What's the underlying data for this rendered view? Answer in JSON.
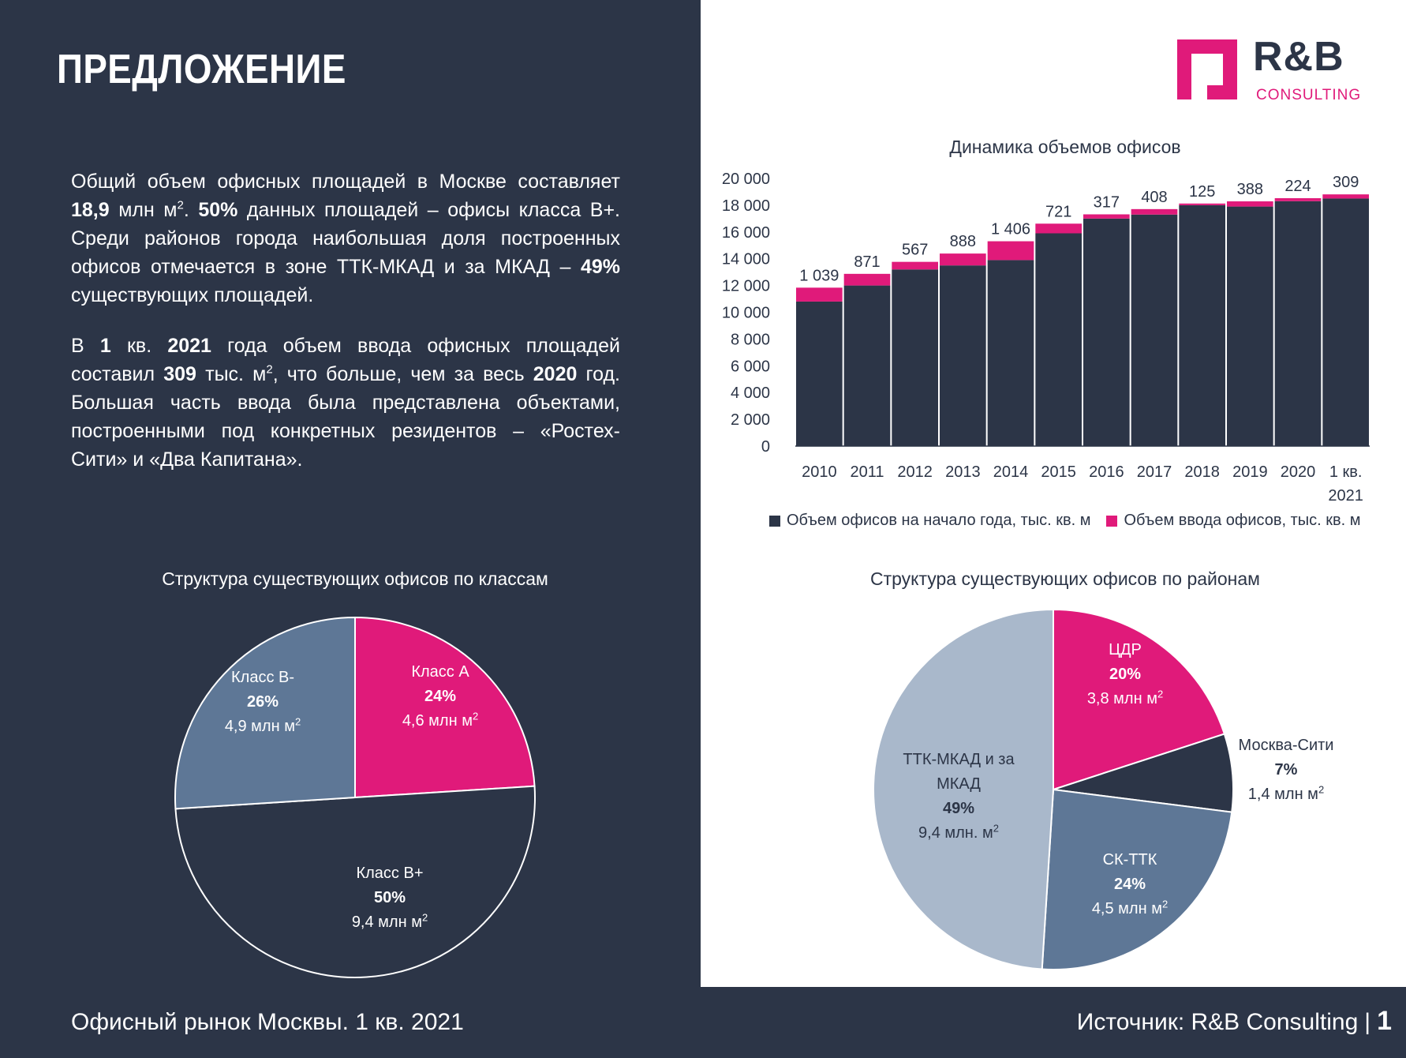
{
  "title": "ПРЕДЛОЖЕНИЕ",
  "paragraph1": {
    "t1": "Общий объем офисных площадей в Москве составляет ",
    "b1": "18,9",
    "t2": " млн м",
    "sup1": "2",
    "t3": ". ",
    "b2": "50%",
    "t4": " данных площадей – офисы класса В+. Среди районов города наибольшая доля построенных офисов отмечается в зоне ТТК-МКАД и за МКАД – ",
    "b3": "49%",
    "t5": " существующих площадей."
  },
  "paragraph2": {
    "t1": "В ",
    "b1": "1",
    "t2": " кв. ",
    "b2": "2021",
    "t3": " года объем ввода офисных площадей составил ",
    "b3": "309",
    "t4": " тыс. м",
    "sup1": "2",
    "t5": ", что больше, чем за весь ",
    "b4": "2020",
    "t6": " год. Большая часть ввода была представлена объектами, построенными под конкретных резидентов – «Ростех-Сити» и «Два Капитана»."
  },
  "logo": {
    "text": "R&B",
    "sub": "CONSULTING",
    "colors": {
      "magenta": "#e01a7a",
      "navy": "#2c3547"
    }
  },
  "footer": {
    "left": "Офисный рынок Москвы. 1 кв. 2021",
    "source_prefix": "Источник: ",
    "source_name": "R&B Consulting",
    "separator": "|",
    "page": "1"
  },
  "chart_data": [
    {
      "type": "bar",
      "stacked": true,
      "title": "Динамика объемов офисов",
      "categories": [
        "2010",
        "2011",
        "2012",
        "2013",
        "2014",
        "2015",
        "2016",
        "2017",
        "2018",
        "2019",
        "2020",
        "1 кв. 2021"
      ],
      "series": [
        {
          "name": "Объем офисов на начало года, тыс. кв. м",
          "color": "#2c3547",
          "values": [
            10800,
            12000,
            13200,
            13500,
            13900,
            15900,
            17000,
            17300,
            18000,
            17900,
            18300,
            18500
          ]
        },
        {
          "name": "Объем ввода офисов, тыс. кв. м",
          "color": "#e01a7a",
          "values": [
            1039,
            871,
            567,
            888,
            1406,
            721,
            317,
            408,
            125,
            388,
            224,
            309
          ]
        }
      ],
      "data_labels": [
        "1 039",
        "871",
        "567",
        "888",
        "1 406",
        "721",
        "317",
        "408",
        "125",
        "388",
        "224",
        "309"
      ],
      "ylim": [
        0,
        20000
      ],
      "yticks": [
        "0",
        "2 000",
        "4 000",
        "6 000",
        "8 000",
        "10 000",
        "12 000",
        "14 000",
        "16 000",
        "18 000",
        "20 000"
      ],
      "legend_position": "bottom",
      "grid": false
    },
    {
      "type": "pie",
      "title": "Структура существующих офисов по классам",
      "slices": [
        {
          "label": "Класс А",
          "value": 24,
          "pct": "24%",
          "area": "4,6 млн м",
          "color": "#e01a7a"
        },
        {
          "label": "Класс В+",
          "value": 50,
          "pct": "50%",
          "area": "9,4 млн м",
          "color": "#2c3547"
        },
        {
          "label": "Класс В-",
          "value": 26,
          "pct": "26%",
          "area": "4,9 млн м",
          "color": "#5e7796"
        }
      ]
    },
    {
      "type": "pie",
      "title": "Структура существующих офисов по районам",
      "slices": [
        {
          "label": "ЦДР",
          "value": 20,
          "pct": "20%",
          "area": "3,8 млн м",
          "color": "#e01a7a"
        },
        {
          "label": "Москва-Сити",
          "value": 7,
          "pct": "7%",
          "area": "1,4 млн м",
          "color": "#2c3547"
        },
        {
          "label": "СК-ТТК",
          "value": 24,
          "pct": "24%",
          "area": "4,5 млн м",
          "color": "#5e7796"
        },
        {
          "label_line1": "ТТК-МКАД и за",
          "label_line2": "МКАД",
          "value": 49,
          "pct": "49%",
          "area": "9,4 млн. м",
          "color": "#a9b8cb"
        }
      ]
    }
  ]
}
